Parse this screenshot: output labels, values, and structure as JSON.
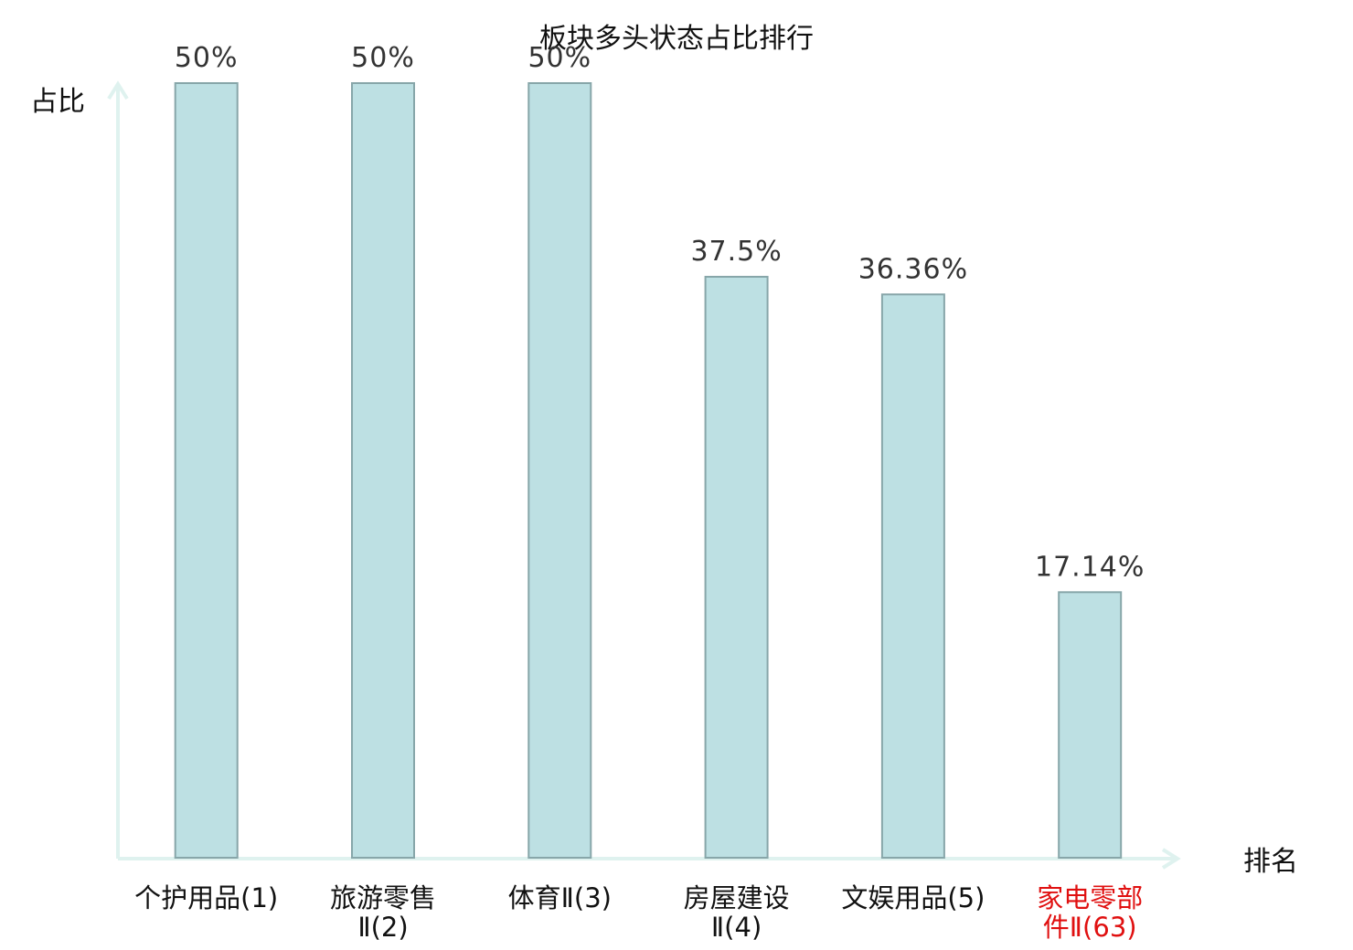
{
  "chart_data": {
    "type": "bar",
    "title": "板块多头状态占比排行",
    "ylabel": "占比",
    "xlabel": "排名",
    "categories": [
      {
        "lines": [
          "个护用品(1)"
        ],
        "highlight": false
      },
      {
        "lines": [
          "旅游零售",
          "Ⅱ(2)"
        ],
        "highlight": false
      },
      {
        "lines": [
          "体育Ⅱ(3)"
        ],
        "highlight": false
      },
      {
        "lines": [
          "房屋建设",
          "Ⅱ(4)"
        ],
        "highlight": false
      },
      {
        "lines": [
          "文娱用品(5)"
        ],
        "highlight": false
      },
      {
        "lines": [
          "家电零部",
          "件Ⅱ(63)"
        ],
        "highlight": true
      }
    ],
    "values": [
      50,
      50,
      50,
      37.5,
      36.36,
      17.14
    ],
    "value_labels": [
      "50%",
      "50%",
      "50%",
      "37.5%",
      "36.36%",
      "17.14%"
    ],
    "ylim": [
      0,
      50
    ],
    "grid": false,
    "colors": {
      "bar_fill": "#bde0e3",
      "bar_stroke": "#87a6a9",
      "axis": "#dff2ef",
      "label_default": "#111111",
      "label_highlight": "#e01010"
    }
  }
}
